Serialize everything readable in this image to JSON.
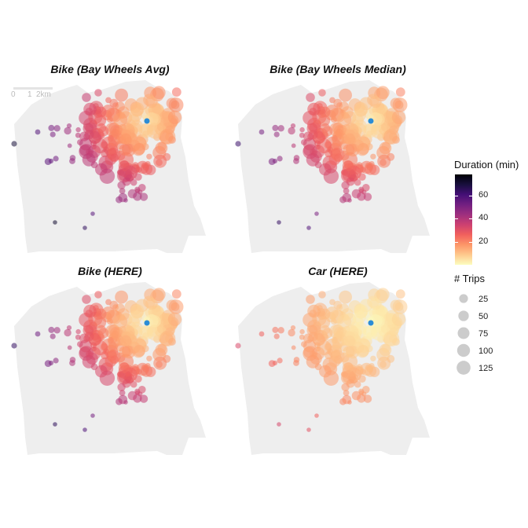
{
  "panels": [
    {
      "title": "Bike (Bay Wheels Avg)",
      "mode": "avg"
    },
    {
      "title": "Bike (Bay Wheels Median)",
      "mode": "median"
    },
    {
      "title": "Bike (HERE)",
      "mode": "bike"
    },
    {
      "title": "Car (HERE)",
      "mode": "car"
    }
  ],
  "scalebar": {
    "labels": [
      "0",
      "1",
      "2km"
    ]
  },
  "legend": {
    "duration_title": "Duration (min)",
    "duration_ticks": [
      "60",
      "40",
      "20"
    ],
    "duration_tick_values": [
      60,
      40,
      20
    ],
    "duration_range": [
      0,
      78
    ],
    "trips_title": "# Trips",
    "trips_labels": [
      "25",
      "50",
      "75",
      "100",
      "125"
    ],
    "trips_values": [
      25,
      50,
      75,
      100,
      125
    ]
  },
  "colors": {
    "land": "#eeeeee",
    "origin": "#2b8cd6",
    "legend_circle": "#cccccc",
    "palette": [
      "#fcfdbf",
      "#fec98d",
      "#fd9668",
      "#f1605d",
      "#cd4071",
      "#9e2f7f",
      "#721f81",
      "#440f76",
      "#180f3d",
      "#000004"
    ]
  }
}
